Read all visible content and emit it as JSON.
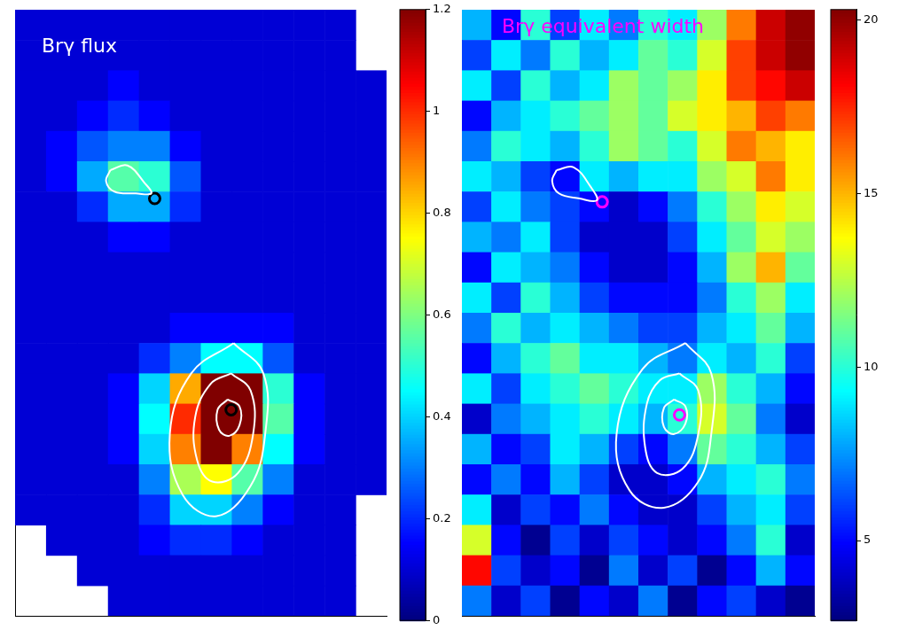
{
  "chart_data": [
    {
      "type": "heatmap",
      "title": "Brγ flux",
      "tick_labels": false,
      "xlim": [
        0,
        12
      ],
      "ylim": [
        20,
        0
      ],
      "cells": [
        [
          0.1,
          0.1,
          0.1,
          0.1,
          0.1,
          0.1,
          0.1,
          0.1,
          0.1,
          0.1,
          0.1,
          null
        ],
        [
          0.1,
          0.1,
          0.1,
          0.1,
          0.1,
          0.1,
          0.1,
          0.1,
          0.1,
          0.1,
          0.1,
          null
        ],
        [
          0.1,
          0.1,
          0.1,
          0.15,
          0.1,
          0.1,
          0.1,
          0.1,
          0.1,
          0.1,
          0.1,
          0.1
        ],
        [
          0.1,
          0.1,
          0.15,
          0.2,
          0.15,
          0.1,
          0.1,
          0.1,
          0.1,
          0.1,
          0.1,
          0.1
        ],
        [
          0.1,
          0.15,
          0.25,
          0.3,
          0.3,
          0.15,
          0.1,
          0.1,
          0.1,
          0.1,
          0.1,
          0.1
        ],
        [
          0.1,
          0.15,
          0.35,
          0.55,
          0.5,
          0.25,
          0.1,
          0.1,
          0.1,
          0.1,
          0.1,
          0.1
        ],
        [
          0.1,
          0.1,
          0.2,
          0.35,
          0.35,
          0.2,
          0.1,
          0.1,
          0.1,
          0.1,
          0.1,
          0.1
        ],
        [
          0.1,
          0.1,
          0.1,
          0.15,
          0.15,
          0.1,
          0.1,
          0.1,
          0.1,
          0.1,
          0.1,
          0.1
        ],
        [
          0.1,
          0.1,
          0.1,
          0.1,
          0.1,
          0.1,
          0.1,
          0.1,
          0.1,
          0.1,
          0.1,
          0.1
        ],
        [
          0.1,
          0.1,
          0.1,
          0.1,
          0.1,
          0.1,
          0.1,
          0.1,
          0.1,
          0.1,
          0.1,
          0.1
        ],
        [
          0.1,
          0.1,
          0.1,
          0.1,
          0.1,
          0.15,
          0.15,
          0.15,
          0.15,
          0.1,
          0.1,
          0.1
        ],
        [
          0.1,
          0.1,
          0.1,
          0.1,
          0.2,
          0.3,
          0.45,
          0.45,
          0.25,
          0.1,
          0.1,
          0.1
        ],
        [
          0.1,
          0.1,
          0.1,
          0.15,
          0.4,
          0.85,
          1.2,
          1.2,
          0.5,
          0.15,
          0.1,
          0.1
        ],
        [
          0.1,
          0.1,
          0.1,
          0.15,
          0.45,
          1.0,
          1.2,
          1.2,
          0.55,
          0.15,
          0.1,
          0.1
        ],
        [
          0.1,
          0.1,
          0.1,
          0.15,
          0.4,
          0.9,
          1.2,
          0.9,
          0.45,
          0.15,
          0.1,
          0.1
        ],
        [
          0.1,
          0.1,
          0.1,
          0.1,
          0.3,
          0.65,
          0.75,
          0.55,
          0.3,
          0.1,
          0.1,
          0.1
        ],
        [
          0.1,
          0.1,
          0.1,
          0.1,
          0.2,
          0.4,
          0.4,
          0.3,
          0.15,
          0.1,
          0.1,
          null
        ],
        [
          null,
          0.1,
          0.1,
          0.1,
          0.15,
          0.2,
          0.2,
          0.15,
          0.1,
          0.1,
          0.1,
          null
        ],
        [
          null,
          null,
          0.1,
          0.1,
          0.1,
          0.1,
          0.1,
          0.1,
          0.1,
          0.1,
          0.1,
          null
        ],
        [
          null,
          null,
          null,
          0.1,
          0.1,
          0.1,
          0.1,
          0.1,
          0.1,
          0.1,
          0.1,
          null
        ]
      ],
      "colorbar": {
        "range": [
          0,
          1.2
        ],
        "ticks": [
          0,
          0.2,
          0.4,
          0.6,
          0.8,
          1,
          1.2
        ]
      },
      "contours": [
        [
          [
            7.06,
            11.0
          ],
          [
            8.02,
            12.0
          ],
          [
            8.08,
            14.0
          ],
          [
            7.61,
            15.71
          ],
          [
            6.51,
            16.71
          ],
          [
            5.41,
            16.0
          ],
          [
            5.0,
            14.0
          ],
          [
            5.69,
            12.0
          ]
        ],
        [
          [
            6.98,
            12.0
          ],
          [
            7.61,
            12.57
          ],
          [
            7.69,
            14.0
          ],
          [
            7.2,
            15.29
          ],
          [
            6.37,
            15.57
          ],
          [
            5.88,
            14.86
          ],
          [
            5.82,
            13.43
          ],
          [
            6.32,
            12.34
          ]
        ],
        [
          [
            6.87,
            12.86
          ],
          [
            7.25,
            13.09
          ],
          [
            7.25,
            13.71
          ],
          [
            6.92,
            14.06
          ],
          [
            6.59,
            13.86
          ],
          [
            6.54,
            13.2
          ]
        ],
        [
          [
            3.08,
            5.29
          ],
          [
            3.63,
            5.14
          ],
          [
            4.18,
            5.71
          ],
          [
            4.4,
            6.06
          ],
          [
            3.9,
            6.06
          ],
          [
            3.21,
            6.0
          ],
          [
            2.94,
            5.66
          ]
        ]
      ],
      "markers": [
        [
          4.51,
          6.23
        ],
        [
          6.98,
          13.2
        ]
      ]
    },
    {
      "type": "heatmap",
      "title": "Brγ equivalent width",
      "tick_labels": false,
      "xlim": [
        0,
        12
      ],
      "ylim": [
        20,
        0
      ],
      "cells": [
        [
          8,
          5,
          10,
          6,
          9,
          7,
          10,
          9,
          12,
          16,
          19,
          20
        ],
        [
          6,
          9,
          7,
          10,
          8,
          9,
          11,
          10,
          13,
          17,
          19,
          20
        ],
        [
          9,
          6,
          10,
          8,
          9,
          12,
          11,
          12,
          14,
          17,
          18,
          19
        ],
        [
          5,
          8,
          9,
          10,
          11,
          12,
          11,
          13,
          14,
          15,
          17,
          16
        ],
        [
          7,
          10,
          9,
          8,
          10,
          12,
          11,
          10,
          13,
          16,
          15,
          14
        ],
        [
          9,
          8,
          6,
          5,
          9,
          8,
          9,
          9,
          12,
          13,
          16,
          14
        ],
        [
          6,
          9,
          7,
          6,
          5,
          4,
          5,
          7,
          10,
          12,
          14,
          13
        ],
        [
          8,
          7,
          9,
          6,
          4,
          4,
          4,
          6,
          9,
          11,
          13,
          12
        ],
        [
          5,
          9,
          8,
          7,
          5,
          4,
          4,
          5,
          8,
          12,
          15,
          11
        ],
        [
          9,
          6,
          10,
          8,
          6,
          5,
          5,
          5,
          7,
          10,
          12,
          9
        ],
        [
          7,
          10,
          8,
          9,
          8,
          7,
          6,
          6,
          8,
          9,
          11,
          8
        ],
        [
          5,
          8,
          10,
          11,
          9,
          9,
          8,
          7,
          9,
          8,
          10,
          6
        ],
        [
          9,
          6,
          9,
          10,
          11,
          10,
          9,
          9,
          12,
          10,
          8,
          5
        ],
        [
          4,
          7,
          8,
          9,
          10,
          9,
          8,
          10,
          13,
          11,
          7,
          4
        ],
        [
          8,
          5,
          6,
          9,
          8,
          6,
          5,
          7,
          11,
          10,
          8,
          6
        ],
        [
          5,
          7,
          5,
          8,
          6,
          4,
          4,
          5,
          8,
          9,
          10,
          7
        ],
        [
          9,
          4,
          6,
          5,
          7,
          5,
          4,
          4,
          6,
          8,
          9,
          6
        ],
        [
          13,
          5,
          3,
          6,
          4,
          6,
          5,
          4,
          5,
          7,
          10,
          4
        ],
        [
          18,
          6,
          4,
          5,
          3,
          7,
          4,
          6,
          3,
          5,
          8,
          5
        ],
        [
          7,
          4,
          6,
          3,
          5,
          4,
          7,
          3,
          5,
          6,
          4,
          3
        ]
      ],
      "colorbar": {
        "range": [
          2.7,
          20.3
        ],
        "ticks": [
          5,
          10,
          15,
          20
        ]
      },
      "contours": [
        [
          [
            7.6,
            11.0
          ],
          [
            8.48,
            12.0
          ],
          [
            8.48,
            14.0
          ],
          [
            8.04,
            15.57
          ],
          [
            6.87,
            16.43
          ],
          [
            5.7,
            15.86
          ],
          [
            5.26,
            14.0
          ],
          [
            6.14,
            11.86
          ]
        ],
        [
          [
            7.4,
            12.0
          ],
          [
            8.04,
            12.57
          ],
          [
            8.04,
            14.0
          ],
          [
            7.51,
            15.14
          ],
          [
            6.64,
            15.29
          ],
          [
            6.23,
            14.43
          ],
          [
            6.29,
            13.0
          ],
          [
            6.73,
            12.23
          ]
        ],
        [
          [
            7.22,
            12.86
          ],
          [
            7.6,
            13.09
          ],
          [
            7.6,
            13.66
          ],
          [
            7.22,
            14.0
          ],
          [
            6.87,
            13.77
          ],
          [
            6.87,
            13.14
          ]
        ],
        [
          [
            3.22,
            5.29
          ],
          [
            3.8,
            5.2
          ],
          [
            4.39,
            5.86
          ],
          [
            4.59,
            6.29
          ],
          [
            4.0,
            6.23
          ],
          [
            3.3,
            6.06
          ],
          [
            3.07,
            5.66
          ]
        ]
      ],
      "markers": [
        [
          4.77,
          6.34
        ],
        [
          7.4,
          13.37
        ]
      ]
    }
  ]
}
